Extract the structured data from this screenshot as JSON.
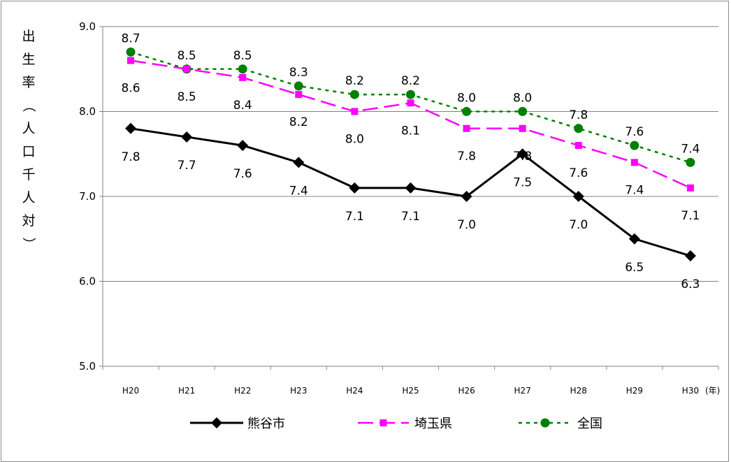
{
  "chart_data": {
    "type": "line",
    "ylabel": "出生率（人口千人対）",
    "x_unit": "(年)",
    "categories": [
      "H20",
      "H21",
      "H22",
      "H23",
      "H24",
      "H25",
      "H26",
      "H27",
      "H28",
      "H29",
      "H30"
    ],
    "ylim": [
      5.0,
      9.0
    ],
    "yticks": [
      "5.0",
      "6.0",
      "7.0",
      "8.0",
      "9.0"
    ],
    "grid": "horizontal",
    "legend_position": "bottom",
    "series": [
      {
        "name": "熊谷市",
        "values": [
          7.8,
          7.7,
          7.6,
          7.4,
          7.1,
          7.1,
          7.0,
          7.5,
          7.0,
          6.5,
          6.3
        ],
        "color": "#000000",
        "marker": "diamond",
        "dash": "solid"
      },
      {
        "name": "埼玉県",
        "values": [
          8.6,
          8.5,
          8.4,
          8.2,
          8.0,
          8.1,
          7.8,
          7.8,
          7.6,
          7.4,
          7.1
        ],
        "color": "#ff00ff",
        "marker": "square",
        "dash": "long-dash"
      },
      {
        "name": "全国",
        "values": [
          8.7,
          8.5,
          8.5,
          8.3,
          8.2,
          8.2,
          8.0,
          8.0,
          7.8,
          7.6,
          7.4
        ],
        "color": "#008000",
        "marker": "circle",
        "dash": "dotted"
      }
    ],
    "data_labels": [
      {
        "series": 0,
        "texts": [
          "7.8",
          "7.7",
          "7.6",
          "7.4",
          "7.1",
          "7.1",
          "7.0",
          "7.5",
          "7.0",
          "6.5",
          "6.3"
        ]
      },
      {
        "series": 1,
        "texts": [
          "8.6",
          "8.5",
          "8.4",
          "8.2",
          "8.0",
          "8.1",
          "7.8",
          "7.8",
          "7.6",
          "7.4",
          "7.1"
        ]
      },
      {
        "series": 2,
        "texts": [
          "8.7",
          "8.5",
          "8.5",
          "8.3",
          "8.2",
          "8.2",
          "8.0",
          "8.0",
          "7.8",
          "7.6",
          "7.4"
        ]
      }
    ]
  }
}
